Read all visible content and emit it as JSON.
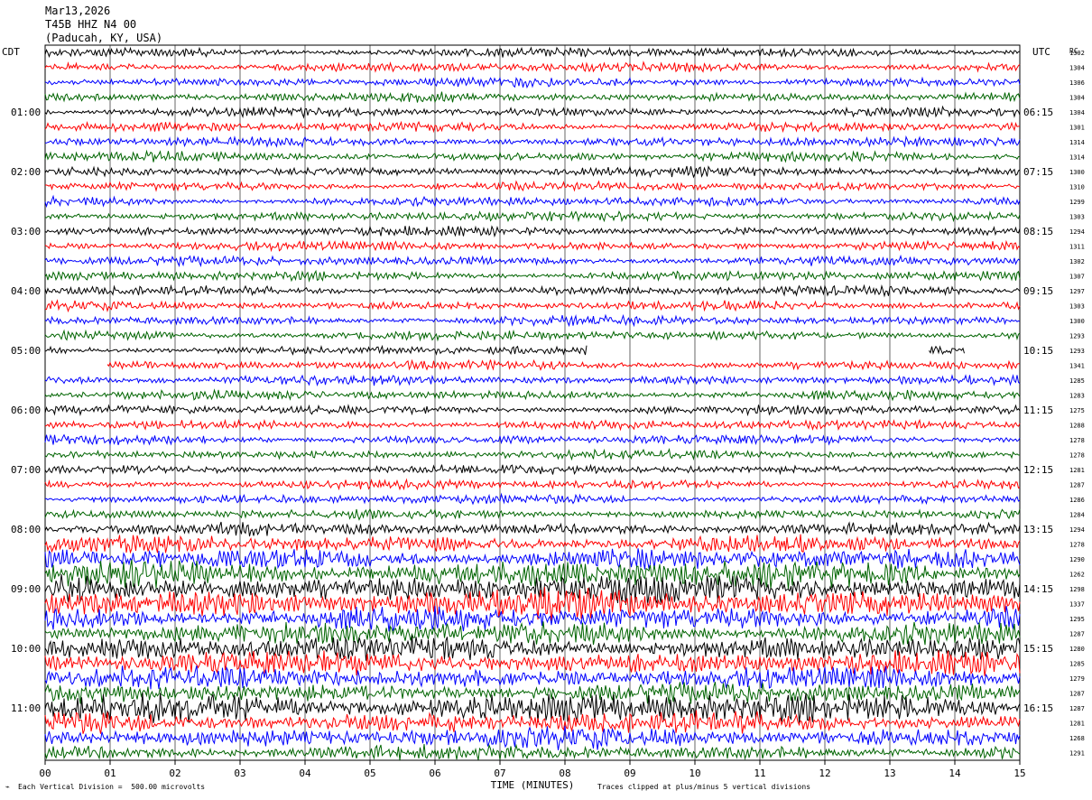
{
  "header": {
    "date": "Mar13,2026",
    "station": "T45B HHZ N4 00",
    "location": "(Paducah, KY, USA)"
  },
  "axes": {
    "left_zone_label": "CDT",
    "right_zone_label": "UTC",
    "rc_label": "RC",
    "xlabel": "TIME (MINUTES)"
  },
  "footer": {
    "scale_note": "Each Vertical Division =  500.00 microvolts",
    "clip_note": "Traces clipped at plus/minus 5 vertical divisions"
  },
  "chart_data": {
    "type": "line",
    "chart_kind": "helicorder seismogram",
    "x": {
      "min": 0,
      "max": 15,
      "ticks": [
        "00",
        "01",
        "02",
        "03",
        "04",
        "05",
        "06",
        "07",
        "08",
        "09",
        "10",
        "11",
        "12",
        "13",
        "14",
        "15"
      ]
    },
    "rows": 48,
    "minutes_per_row": 15,
    "trace_colors": [
      "#000000",
      "#ff0000",
      "#0000ff",
      "#006400"
    ],
    "grid": "vertical lines each minute",
    "left_hour_labels": [
      "01:00",
      "02:00",
      "03:00",
      "04:00",
      "05:00",
      "06:00",
      "07:00",
      "08:00",
      "09:00",
      "10:00",
      "11:00"
    ],
    "right_hour_labels": [
      "06:15",
      "07:15",
      "08:15",
      "09:15",
      "10:15",
      "11:15",
      "12:15",
      "13:15",
      "14:15",
      "15:15",
      "16:15"
    ],
    "hour_label_start_row": 4,
    "rc_values": [
      "1302",
      "1304",
      "1306",
      "1304",
      "1304",
      "1301",
      "1314",
      "1314",
      "1300",
      "1310",
      "1299",
      "1303",
      "1294",
      "1311",
      "1302",
      "1307",
      "1297",
      "1303",
      "1300",
      "1293",
      "1293",
      "1341",
      "1285",
      "1283",
      "1275",
      "1288",
      "1278",
      "1278",
      "1281",
      "1287",
      "1286",
      "1284",
      "1294",
      "1278",
      "1290",
      "1262",
      "1298",
      "1337",
      "1295",
      "1287",
      "1280",
      "1285",
      "1279",
      "1287",
      "1287",
      "1281",
      "1268",
      "1291"
    ],
    "row_amplitude": [
      1,
      1,
      1,
      1,
      1,
      1,
      1,
      1,
      1,
      1,
      1,
      1,
      1,
      1,
      1,
      1,
      1,
      1,
      1,
      1,
      1,
      1,
      1,
      1,
      1,
      1,
      1,
      1,
      1,
      1,
      1,
      1,
      1.3,
      1.8,
      2.2,
      3,
      3,
      3.2,
      2.6,
      2.4,
      2.6,
      2.5,
      2.4,
      2.2,
      3.2,
      2.4,
      2.2,
      1.6
    ],
    "data_gaps": [
      {
        "row": 20,
        "from_min": 8.35,
        "to_min": 13.6
      },
      {
        "row": 20,
        "from_min": 14.15,
        "to_min": 15
      },
      {
        "row": 21,
        "from_min": 0,
        "to_min": 0.95
      }
    ]
  }
}
